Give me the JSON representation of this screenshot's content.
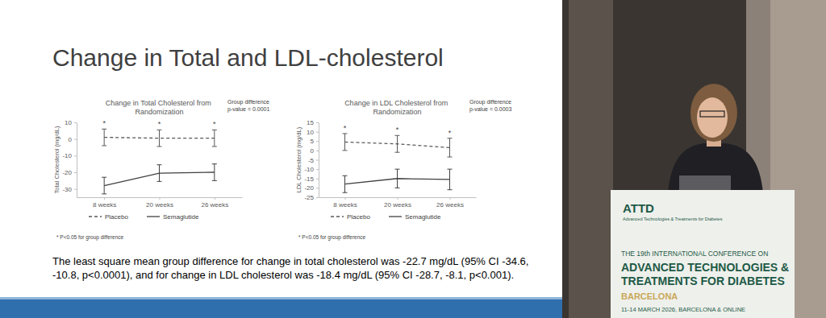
{
  "slide": {
    "title": "Change in Total and LDL-cholesterol",
    "summary": "The least square mean group difference for change in total cholesterol was -22.7 mg/dL (95% CI -34.6, -10.8, p<0.0001), and for change in LDL cholesterol was -18.4 mg/dL (95% CI -28.7, -8.1, p<0.001)."
  },
  "stage": {
    "logo": "ATTD",
    "logo_subtitle": "Advanced Technologies & Treatments for Diabetes",
    "line1": "THE 19th INTERNATIONAL CONFERENCE ON",
    "line2": "ADVANCED TECHNOLOGIES &",
    "line3": "TREATMENTS FOR DIABETES",
    "city": "BARCELONA",
    "dates": "11-14 MARCH 2026, BARCELONA & ONLINE"
  },
  "chart_data": [
    {
      "type": "line",
      "title": "Change in Total Cholesterol from Randomization",
      "annotation": [
        "Group difference",
        "p-value = 0.0001"
      ],
      "y_label": "Total Cholesterol (mg/dL)",
      "categories": [
        "8 weeks",
        "20 weeks",
        "26 weeks"
      ],
      "significance": [
        "*",
        "*",
        "*"
      ],
      "footnote": "* P<0.05 for group difference",
      "ylim": [
        -35,
        10
      ],
      "yticks": [
        -30,
        -20,
        -10,
        0,
        10
      ],
      "grid": false,
      "legend": "bottom",
      "marker": "none",
      "series": [
        {
          "name": "Placebo",
          "color": "#595959",
          "line_style": "dashed",
          "values": [
            1,
            0.5,
            0.5
          ],
          "errors": [
            5,
            5,
            5
          ]
        },
        {
          "name": "Semaglutide",
          "color": "#404040",
          "line_style": "solid",
          "values": [
            -28,
            -20.5,
            -20
          ],
          "errors": [
            5,
            5,
            5
          ]
        }
      ]
    },
    {
      "type": "line",
      "title": "Change in LDL Cholesterol from Randomization",
      "annotation": [
        "Group difference",
        "p-value = 0.0003"
      ],
      "y_label": "LDL Cholesterol (mg/dL)",
      "categories": [
        "8 weeks",
        "20 weeks",
        "26 weeks"
      ],
      "significance": [
        "*",
        "*",
        "*"
      ],
      "footnote": "* P<0.05 for group difference",
      "ylim": [
        -25,
        15
      ],
      "yticks": [
        -25,
        -20,
        -15,
        -10,
        -5,
        0,
        5,
        10,
        15
      ],
      "grid": false,
      "legend": "bottom",
      "marker": "none",
      "series": [
        {
          "name": "Placebo",
          "color": "#595959",
          "line_style": "dashed",
          "values": [
            4.5,
            3.5,
            1.5
          ],
          "errors": [
            4.5,
            4.5,
            5
          ]
        },
        {
          "name": "Semaglutide",
          "color": "#404040",
          "line_style": "solid",
          "values": [
            -18,
            -15,
            -15.5
          ],
          "errors": [
            4.5,
            5,
            5.5
          ]
        }
      ]
    }
  ]
}
